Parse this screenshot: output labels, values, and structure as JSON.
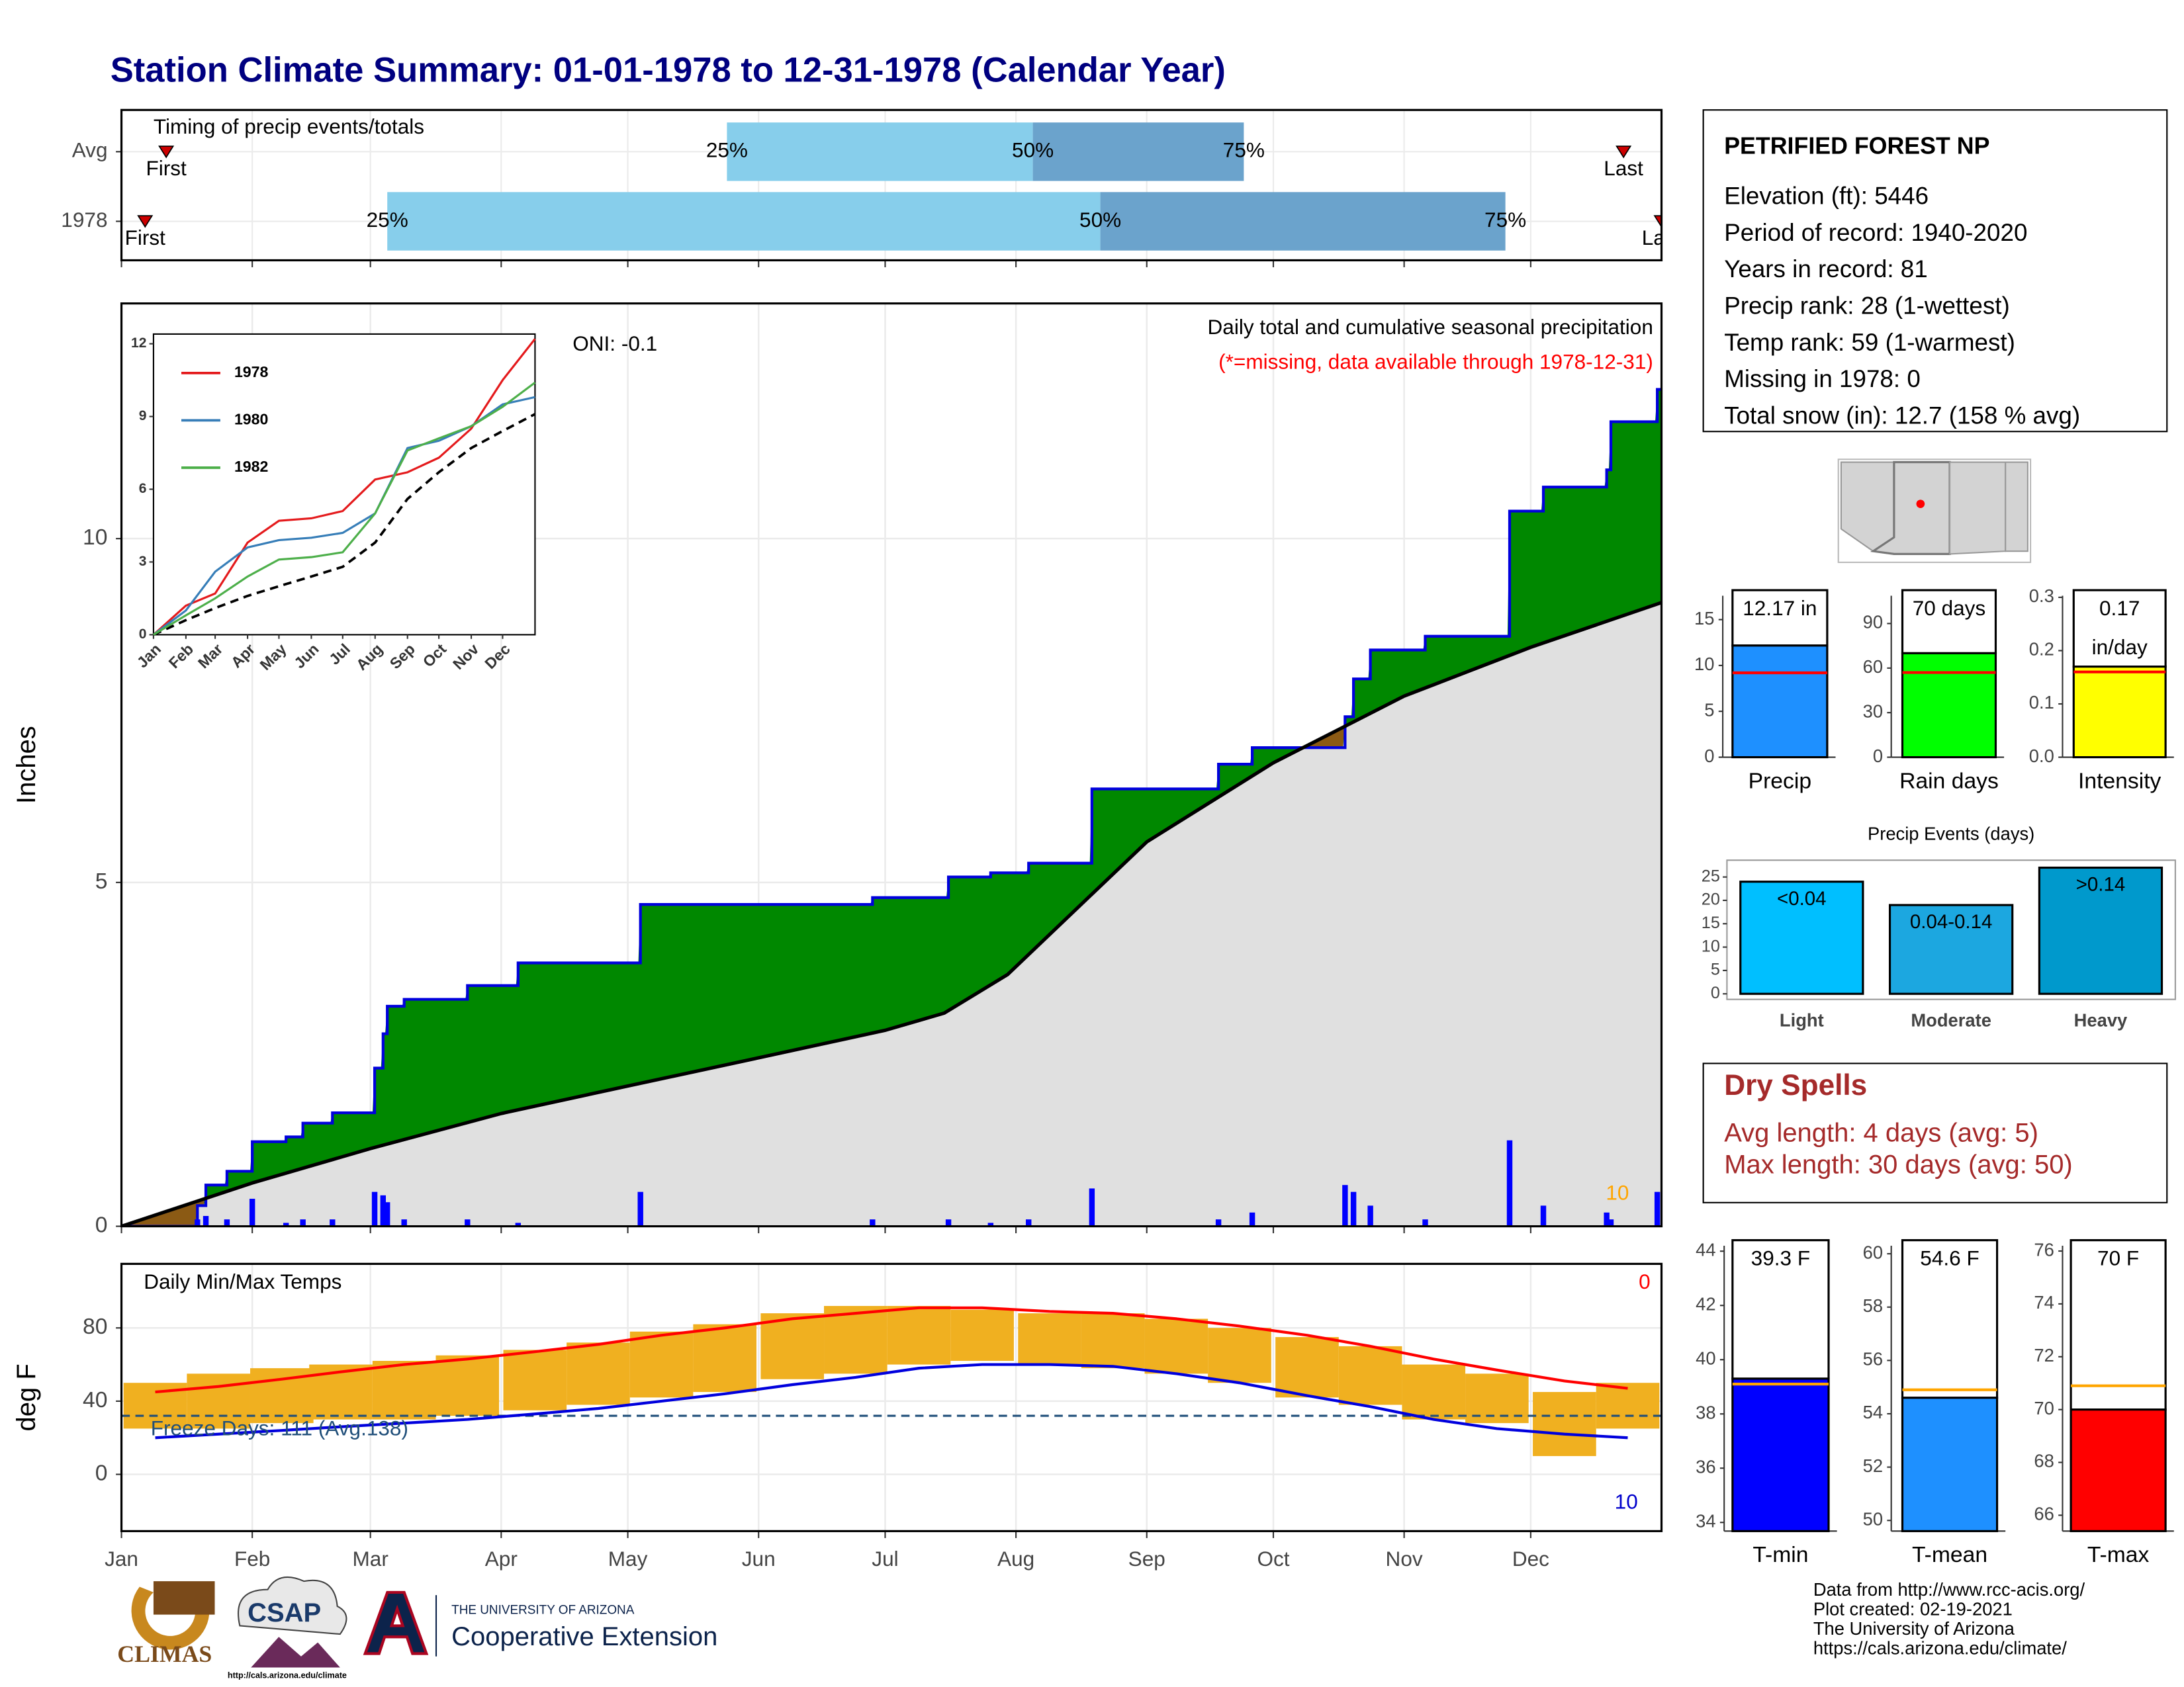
{
  "title": "Station Climate Summary: 01-01-1978 to 12-31-1978 (Calendar Year)",
  "timing": {
    "label": "Timing of precip events/totals",
    "percent_labels": [
      "25%",
      "50%",
      "75%"
    ],
    "light_color": "#87ceeb",
    "dark_color": "#6ba3cc",
    "marker_color": "#cc0000",
    "rows": [
      {
        "name": "Avg",
        "first": 10.6,
        "first_label": "First",
        "p25": 143.5,
        "p50": 216,
        "p75": 266,
        "last": 356,
        "last_label": "Last"
      },
      {
        "name": "1978",
        "first": 5.6,
        "first_label": "First",
        "p25": 63,
        "p50": 232,
        "p75": 328,
        "last": 365,
        "last_label": "Last"
      }
    ]
  },
  "station": {
    "name": "PETRIFIED FOREST NP",
    "lines": [
      "Elevation (ft): 5446",
      "Period of record: 1940-2020",
      "Years in record: 81",
      "Precip rank: 28 (1-wettest)",
      "Temp rank: 59 (1-warmest)",
      "Missing in 1978: 0",
      "Total snow (in): 12.7 (158 % avg)"
    ]
  },
  "dry_spells": {
    "title": "Dry Spells",
    "lines": [
      "Avg length: 4 days (avg: 5)",
      "Max length: 30 days (avg: 50)"
    ]
  },
  "footer": {
    "credits": [
      "Data from http://www.rcc-acis.org/",
      "Plot created: 02-19-2021",
      "The University of Arizona",
      "https://cals.arizona.edu/climate/"
    ],
    "logos": [
      "CLIMAS",
      "CSAP",
      "http://cals.arizona.edu/climate",
      "THE UNIVERSITY OF ARIZONA",
      "Cooperative Extension"
    ]
  },
  "chart_data": [
    {
      "type": "area",
      "title": "Daily total and cumulative seasonal precipitation",
      "subtitle": "(*=missing, data available through 1978-12-31)",
      "annotation": "ONI: -0.1",
      "annotation_count": 10,
      "ylabel": "Inches",
      "xlim": [
        0,
        365
      ],
      "xticks": [
        0,
        31,
        59,
        90,
        120,
        151,
        181,
        212,
        243,
        273,
        304,
        334
      ],
      "ylim": [
        0,
        13.42
      ],
      "yticks": [
        0,
        5,
        10
      ],
      "grid": true,
      "above_color": "#008800",
      "below_color": "#8b5a14",
      "fill_color": "#e0e0e0",
      "observed": {
        "color": "#0000dd",
        "x": [
          0,
          18,
          20,
          25,
          31,
          39,
          43,
          50,
          60,
          62,
          63,
          67,
          82,
          94,
          123,
          178,
          196,
          206,
          215,
          230,
          260,
          268,
          290,
          292,
          296,
          309,
          329,
          337,
          352,
          353,
          364
        ],
        "values": [
          0,
          0.3,
          0.6,
          0.8,
          1.23,
          1.3,
          1.5,
          1.65,
          2.3,
          2.8,
          3.2,
          3.3,
          3.5,
          3.83,
          4.68,
          4.78,
          5.08,
          5.14,
          5.28,
          6.36,
          6.72,
          6.96,
          7.41,
          7.96,
          8.38,
          8.58,
          10.4,
          10.75,
          11.0,
          11.7,
          12.17
        ]
      },
      "normal": {
        "color": "#000000",
        "x": [
          0,
          31,
          59,
          90,
          120,
          151,
          181,
          195,
          210,
          243,
          273,
          304,
          334,
          365
        ],
        "values": [
          0,
          0.63,
          1.13,
          1.64,
          2.04,
          2.45,
          2.85,
          3.1,
          3.66,
          5.59,
          6.74,
          7.71,
          8.42,
          9.07
        ]
      },
      "daily": {
        "color": "#0000ff",
        "x": [
          18,
          20,
          25,
          31,
          39,
          43,
          50,
          60,
          62,
          63,
          67,
          82,
          94,
          123,
          178,
          196,
          206,
          215,
          230,
          260,
          268,
          290,
          292,
          296,
          309,
          329,
          337,
          352,
          353,
          364
        ],
        "values": [
          0.1,
          0.15,
          0.1,
          0.4,
          0.05,
          0.1,
          0.1,
          0.5,
          0.45,
          0.35,
          0.1,
          0.1,
          0.05,
          0.5,
          0.1,
          0.1,
          0.05,
          0.1,
          0.55,
          0.1,
          0.2,
          0.6,
          0.5,
          0.3,
          0.1,
          1.25,
          0.3,
          0.2,
          0.1,
          0.5
        ]
      }
    },
    {
      "type": "line",
      "xlim": [
        0,
        365
      ],
      "x": [
        0,
        31,
        59,
        90,
        120,
        151,
        181,
        212,
        243,
        273,
        304,
        334,
        365
      ],
      "xticks": [
        {
          "value": 0,
          "label": "Jan"
        },
        {
          "value": 31,
          "label": "Feb"
        },
        {
          "value": 59,
          "label": "Mar"
        },
        {
          "value": 90,
          "label": "Apr"
        },
        {
          "value": 120,
          "label": "May"
        },
        {
          "value": 151,
          "label": "Jun"
        },
        {
          "value": 181,
          "label": "Jul"
        },
        {
          "value": 212,
          "label": "Aug"
        },
        {
          "value": 243,
          "label": "Sep"
        },
        {
          "value": 273,
          "label": "Oct"
        },
        {
          "value": 304,
          "label": "Nov"
        },
        {
          "value": 334,
          "label": "Dec"
        }
      ],
      "ylim": [
        0,
        12.4
      ],
      "yticks": [
        0,
        3,
        6,
        9,
        12
      ],
      "series": [
        {
          "name": "1978",
          "color": "#e41a1c",
          "values": [
            0,
            1.2,
            1.7,
            3.8,
            4.7,
            4.8,
            5.1,
            6.4,
            6.7,
            7.3,
            8.5,
            10.5,
            12.2
          ]
        },
        {
          "name": "1980",
          "color": "#377eb8",
          "values": [
            0,
            1.0,
            2.6,
            3.6,
            3.9,
            4.0,
            4.2,
            5.0,
            7.7,
            8.0,
            8.6,
            9.5,
            9.8
          ]
        },
        {
          "name": "1982",
          "color": "#4daf4a",
          "values": [
            0,
            0.8,
            1.5,
            2.4,
            3.1,
            3.2,
            3.4,
            5.0,
            7.6,
            8.1,
            8.6,
            9.4,
            10.4
          ]
        }
      ],
      "normal": {
        "color": "#000000",
        "values": [
          0,
          0.6,
          1.1,
          1.6,
          2.0,
          2.4,
          2.8,
          3.8,
          5.6,
          6.7,
          7.7,
          8.4,
          9.1
        ]
      }
    },
    {
      "type": "range",
      "title": "Daily Min/Max Temps",
      "ylabel": "deg F",
      "record_high_count": 0,
      "record_low_count": 10,
      "xlim": [
        0,
        365
      ],
      "xticks": [
        {
          "value": 0,
          "label": "Jan"
        },
        {
          "value": 31,
          "label": "Feb"
        },
        {
          "value": 59,
          "label": "Mar"
        },
        {
          "value": 90,
          "label": "Apr"
        },
        {
          "value": 120,
          "label": "May"
        },
        {
          "value": 151,
          "label": "Jun"
        },
        {
          "value": 181,
          "label": "Jul"
        },
        {
          "value": 212,
          "label": "Aug"
        },
        {
          "value": 243,
          "label": "Sep"
        },
        {
          "value": 273,
          "label": "Oct"
        },
        {
          "value": 304,
          "label": "Nov"
        },
        {
          "value": 334,
          "label": "Dec"
        }
      ],
      "ylim": [
        -31,
        115
      ],
      "yticks": [
        0,
        40,
        80
      ],
      "grid": true,
      "freeze": {
        "value": 32,
        "label": "Freeze Days: 111 (Avg.138)",
        "color": "#1f4e79"
      },
      "x": [
        8,
        23,
        38,
        52,
        67,
        82,
        98,
        113,
        128,
        143,
        159,
        174,
        189,
        204,
        220,
        235,
        250,
        265,
        281,
        296,
        311,
        326,
        342,
        357
      ],
      "range": {
        "color": "#f0b020",
        "high": [
          50,
          55,
          58,
          60,
          62,
          65,
          68,
          72,
          78,
          82,
          88,
          92,
          92,
          90,
          88,
          88,
          85,
          80,
          75,
          70,
          60,
          55,
          45,
          50
        ],
        "low": [
          25,
          25,
          28,
          30,
          30,
          32,
          35,
          38,
          42,
          45,
          52,
          55,
          60,
          62,
          60,
          58,
          55,
          50,
          42,
          38,
          30,
          28,
          10,
          25
        ]
      },
      "normal_max": {
        "color": "#ff0000",
        "values": [
          45,
          48,
          52,
          56,
          60,
          63,
          67,
          71,
          76,
          80,
          85,
          88,
          91,
          91,
          89,
          88,
          85,
          81,
          76,
          70,
          63,
          57,
          51,
          47
        ]
      },
      "normal_min": {
        "color": "#0000dd",
        "values": [
          20,
          22,
          24,
          26,
          28,
          30,
          33,
          36,
          40,
          44,
          49,
          53,
          58,
          60,
          60,
          59,
          55,
          50,
          43,
          37,
          30,
          25,
          22,
          20
        ]
      }
    },
    {
      "type": "bar",
      "categories": [
        "Precip"
      ],
      "values": [
        12.17
      ],
      "value_labels": [
        "12.17 in"
      ],
      "color": "#1e90ff",
      "normal": 9.2,
      "normal_color": "#ff0000",
      "ylim": [
        0,
        17.6
      ],
      "yticks": [
        0,
        5,
        10,
        15
      ]
    },
    {
      "type": "bar",
      "categories": [
        "Rain days"
      ],
      "values": [
        70
      ],
      "value_labels": [
        "70 days"
      ],
      "color": "#00ff00",
      "normal": 57,
      "normal_color": "#ff0000",
      "ylim": [
        0,
        108.7
      ],
      "yticks": [
        0,
        30,
        60,
        90
      ]
    },
    {
      "type": "bar",
      "categories": [
        "Intensity"
      ],
      "values": [
        0.17
      ],
      "value_labels": [
        "0.17"
      ],
      "unit": "in/day",
      "color": "#ffff00",
      "normal": 0.16,
      "normal_color": "#ff0000",
      "ylim": [
        0,
        0.303
      ],
      "yticks": [
        {
          "value": 0,
          "label": "0.0"
        },
        0.1,
        0.2,
        0.3
      ]
    },
    {
      "type": "events",
      "title": "Precip Events (days)",
      "categories": [
        "Light",
        "Moderate",
        "Heavy"
      ],
      "values": [
        24,
        19,
        27
      ],
      "value_labels": [
        "<0.04",
        "0.04-0.14",
        ">0.14"
      ],
      "colors": [
        "#00bfff",
        "#1ca7e0",
        "#0099cc"
      ],
      "ylim": [
        0,
        28
      ],
      "yticks": [
        0,
        5,
        10,
        15,
        20,
        25
      ]
    },
    {
      "type": "bar",
      "categories": [
        "T-min"
      ],
      "values": [
        39.3
      ],
      "value_labels": [
        "39.3 F"
      ],
      "color": "#0000ff",
      "normal": 39.1,
      "normal_color": "#ffa500",
      "ylim": [
        33.68,
        44.2
      ],
      "yticks": [
        34,
        36,
        38,
        40,
        42,
        44
      ]
    },
    {
      "type": "bar",
      "categories": [
        "T-mean"
      ],
      "values": [
        54.6
      ],
      "value_labels": [
        "54.6 F"
      ],
      "color": "#1e90ff",
      "normal": 54.9,
      "normal_color": "#ffa500",
      "ylim": [
        49.6,
        60.3
      ],
      "yticks": [
        50,
        52,
        54,
        56,
        58,
        60
      ]
    },
    {
      "type": "bar",
      "categories": [
        "T-max"
      ],
      "values": [
        70
      ],
      "value_labels": [
        "70 F"
      ],
      "color": "#ff0000",
      "normal": 70.9,
      "normal_color": "#ffa500",
      "ylim": [
        65.4,
        76.2
      ],
      "yticks": [
        66,
        68,
        70,
        72,
        74,
        76
      ]
    }
  ]
}
